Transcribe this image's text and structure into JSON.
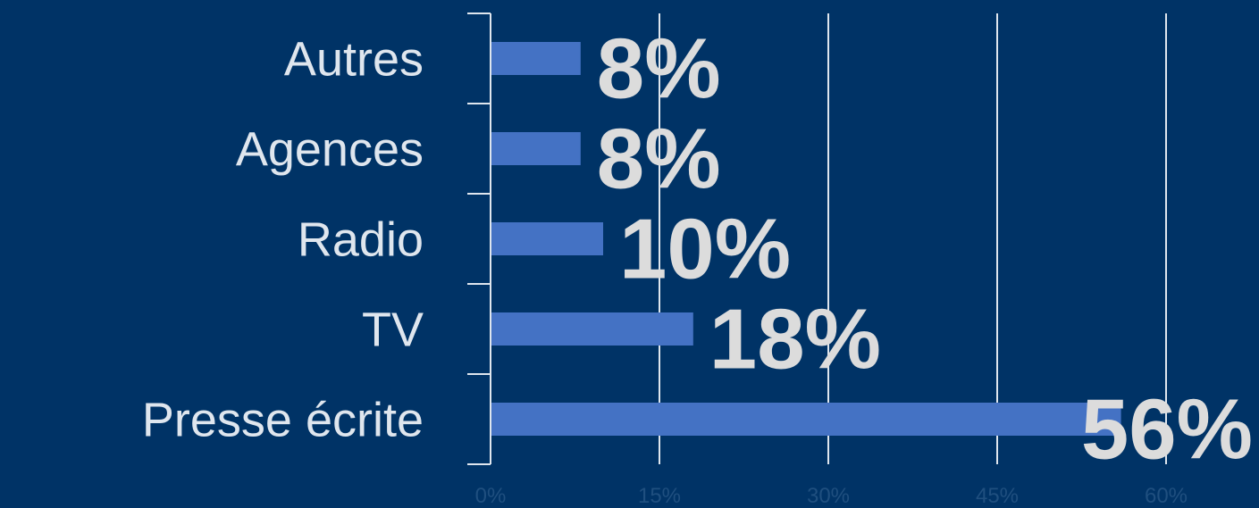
{
  "chart_data": {
    "type": "bar",
    "orientation": "horizontal",
    "categories": [
      "Autres",
      "Agences",
      "Radio",
      "TV",
      "Presse écrite"
    ],
    "values": [
      8,
      8,
      10,
      18,
      56
    ],
    "data_labels": [
      "8%",
      "8%",
      "10%",
      "18%",
      "56%"
    ],
    "xlim": [
      0,
      60
    ],
    "x_ticks": [
      0,
      15,
      30,
      45,
      60
    ],
    "x_tick_labels": [
      "0%",
      "15%",
      "30%",
      "45%",
      "60%"
    ],
    "grid": true,
    "legend": "none",
    "title": "",
    "xlabel": "",
    "ylabel": "",
    "colors": {
      "background": "#003366",
      "bar": "#4472C4",
      "data_label": "#dcdcdc",
      "category_label": "#dfe6ee",
      "grid": "#dfe6ee",
      "tick_label": "#1f4f7f"
    }
  }
}
